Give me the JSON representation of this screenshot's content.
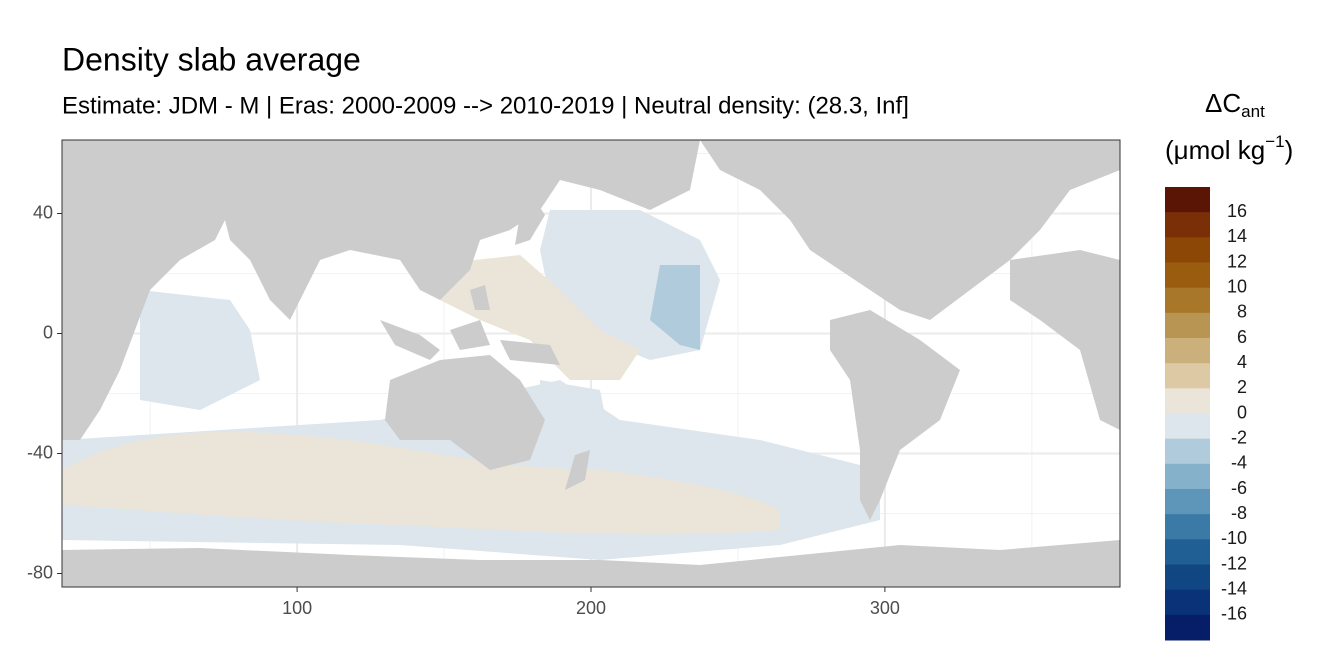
{
  "chart_data": {
    "type": "raster_map",
    "title": "Density slab average",
    "subtitle": "Estimate: JDM - M | Eras: 2000-2009 --> 2010-2019 | Neutral density: (28.3, Inf]",
    "xlim": [
      20,
      380
    ],
    "ylim": [
      -84.5,
      64.5
    ],
    "xticks": [
      100,
      200,
      300
    ],
    "yticks": [
      40,
      0,
      -40,
      -80
    ],
    "x_minor_ticks": [
      50,
      150,
      250,
      350
    ],
    "y_minor_ticks": [
      60,
      20,
      -20,
      -60
    ],
    "grid": true,
    "land_color": "#cccccc",
    "legend": {
      "title": {
        "symbol": "ΔC",
        "subscript": "ant",
        "unit": "(μmol kg",
        "superscript": "−1",
        "close": ")"
      },
      "breaks": [
        16,
        14,
        12,
        10,
        8,
        6,
        4,
        2,
        0,
        -2,
        -4,
        -6,
        -8,
        -10,
        -12,
        -14,
        -16
      ],
      "colors": [
        "#5a1505",
        "#7a2f06",
        "#8c4606",
        "#9a5c0f",
        "#a8772a",
        "#b89553",
        "#cbb07c",
        "#ddc9a3",
        "#ebe4d8",
        "#dce6ec",
        "#b0cbdc",
        "#86b1cb",
        "#5e96b9",
        "#3b7aa6",
        "#1f5f93",
        "#104783",
        "#093278",
        "#061e68"
      ]
    }
  }
}
